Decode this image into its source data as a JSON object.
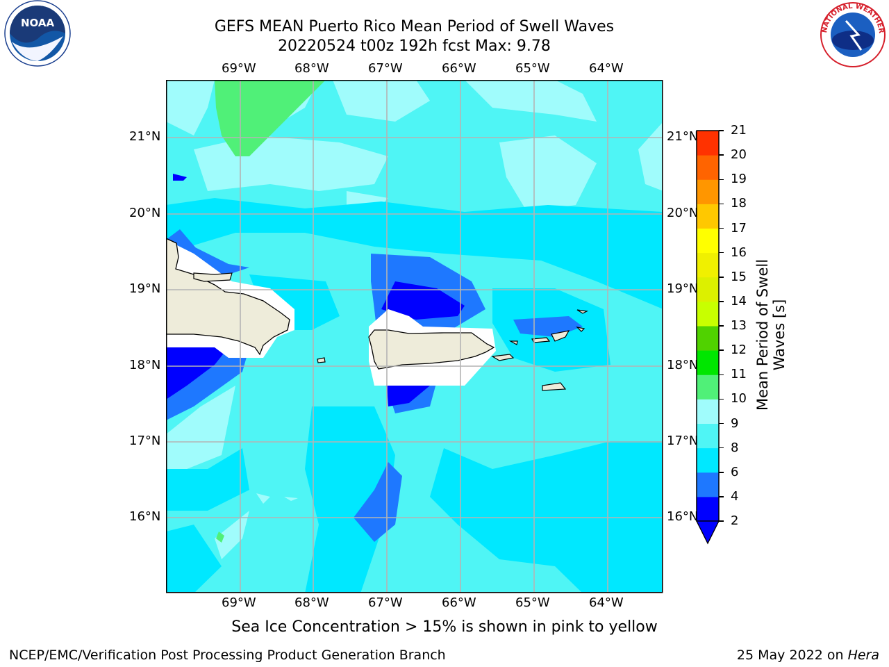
{
  "title_line1": "GEFS MEAN Puerto Rico Mean Period of Swell Waves",
  "title_line2": "20220524 t00z 192h fcst   Max: 9.78",
  "logos": {
    "left": "NOAA",
    "right": "NATIONAL WEATHER SERVICE"
  },
  "longitude_labels": [
    "69°W",
    "68°W",
    "67°W",
    "66°W",
    "65°W",
    "64°W"
  ],
  "latitude_labels": [
    "21°N",
    "20°N",
    "19°N",
    "18°N",
    "17°N",
    "16°N"
  ],
  "colorbar": {
    "label": "Mean Period of Swell Waves [s]",
    "ticks": [
      "2",
      "4",
      "6",
      "8",
      "9",
      "10",
      "11",
      "12",
      "13",
      "14",
      "15",
      "16",
      "17",
      "18",
      "19",
      "20",
      "21"
    ],
    "colors": [
      "#0000ff",
      "#1e78ff",
      "#00e8ff",
      "#4ff5f5",
      "#a0fcfc",
      "#50f078",
      "#00e600",
      "#50d200",
      "#c8ff00",
      "#dcf000",
      "#f0f000",
      "#ffff00",
      "#ffc800",
      "#ff9600",
      "#ff6400",
      "#ff3200",
      "#ff0000"
    ]
  },
  "note": "Sea Ice Concentration > 15% is shown in pink to yellow",
  "footer_left": "NCEP/EMC/Verification Post Processing Product Generation Branch",
  "footer_right_prefix": "25 May 2022 on ",
  "footer_right_host": "Hera"
}
